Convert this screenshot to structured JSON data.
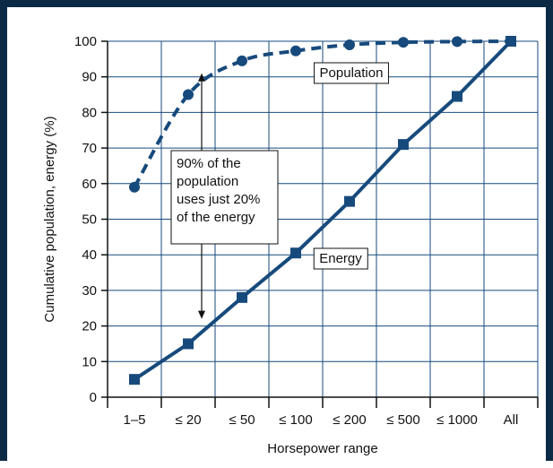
{
  "chart_data": {
    "type": "line",
    "title": "",
    "xlabel": "Horsepower range",
    "ylabel": "Cumulative population, energy (%)",
    "categories": [
      "1–5",
      "≤ 20",
      "≤ 50",
      "≤ 100",
      "≤ 200",
      "≤ 500",
      "≤ 1000",
      "All"
    ],
    "ylim": [
      0,
      100
    ],
    "yticks": [
      0,
      10,
      20,
      30,
      40,
      50,
      60,
      70,
      80,
      90,
      100
    ],
    "grid": true,
    "series": [
      {
        "name": "Population",
        "style": "dashed",
        "marker": "circle",
        "color": "#174a7c",
        "x_index": [
          0.5,
          1.5,
          2.5,
          3.5,
          4.5,
          5.5,
          6.5,
          7.5
        ],
        "values": [
          59,
          85,
          94.5,
          97.3,
          99,
          99.7,
          99.9,
          100
        ]
      },
      {
        "name": "Energy",
        "style": "solid",
        "marker": "square",
        "color": "#174a7c",
        "x_index": [
          0.5,
          1.5,
          2.5,
          3.5,
          4.5,
          5.5,
          6.5,
          7.5
        ],
        "values": [
          5,
          15,
          28,
          40.5,
          55,
          71,
          84.5,
          100
        ]
      }
    ],
    "annotations": [
      {
        "text": [
          "90% of the",
          "population",
          "uses just 20%",
          "of the energy"
        ],
        "arrow_from": 91,
        "arrow_to": 22,
        "arrow_x_index": 1.75
      }
    ]
  },
  "colors": {
    "frame": "#0c2a45",
    "series": "#174a7c",
    "grid": "#174a7c"
  }
}
